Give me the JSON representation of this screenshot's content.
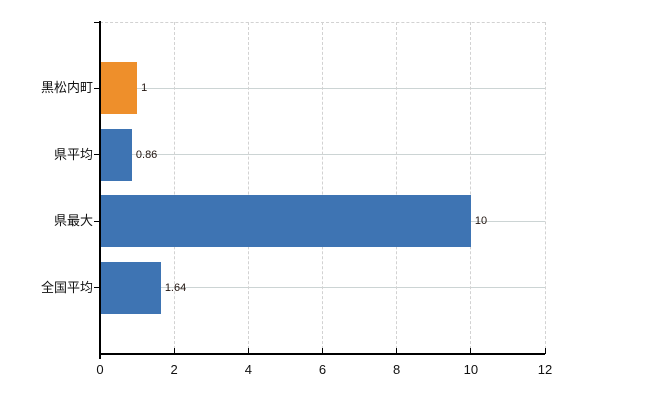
{
  "chart_data": {
    "type": "bar",
    "orientation": "horizontal",
    "title": "",
    "xlabel": "",
    "ylabel": "",
    "categories": [
      "黒松内町",
      "県平均",
      "県最大",
      "全国平均"
    ],
    "values": [
      1,
      0.86,
      10,
      1.64
    ],
    "value_labels": [
      "1",
      "0.86",
      "10",
      "1.64"
    ],
    "bar_colors": [
      "#ee8f2b",
      "#3e74b3",
      "#3e74b3",
      "#3e74b3"
    ],
    "xlim": [
      0,
      12
    ],
    "xticks": [
      0,
      2,
      4,
      6,
      8,
      10,
      12
    ],
    "xtick_labels": [
      "0",
      "2",
      "4",
      "6",
      "8",
      "10",
      "12"
    ],
    "grid": "on",
    "legend": "none"
  },
  "colors": {
    "background": "#ffffff",
    "axis": "#000000",
    "grid_horizontal": "#ccd4d4",
    "grid_vertical": "#d2d2d2",
    "category_label_text": "#111111",
    "xtick_label_text": "#111111",
    "value_label_text": "#221510"
  }
}
